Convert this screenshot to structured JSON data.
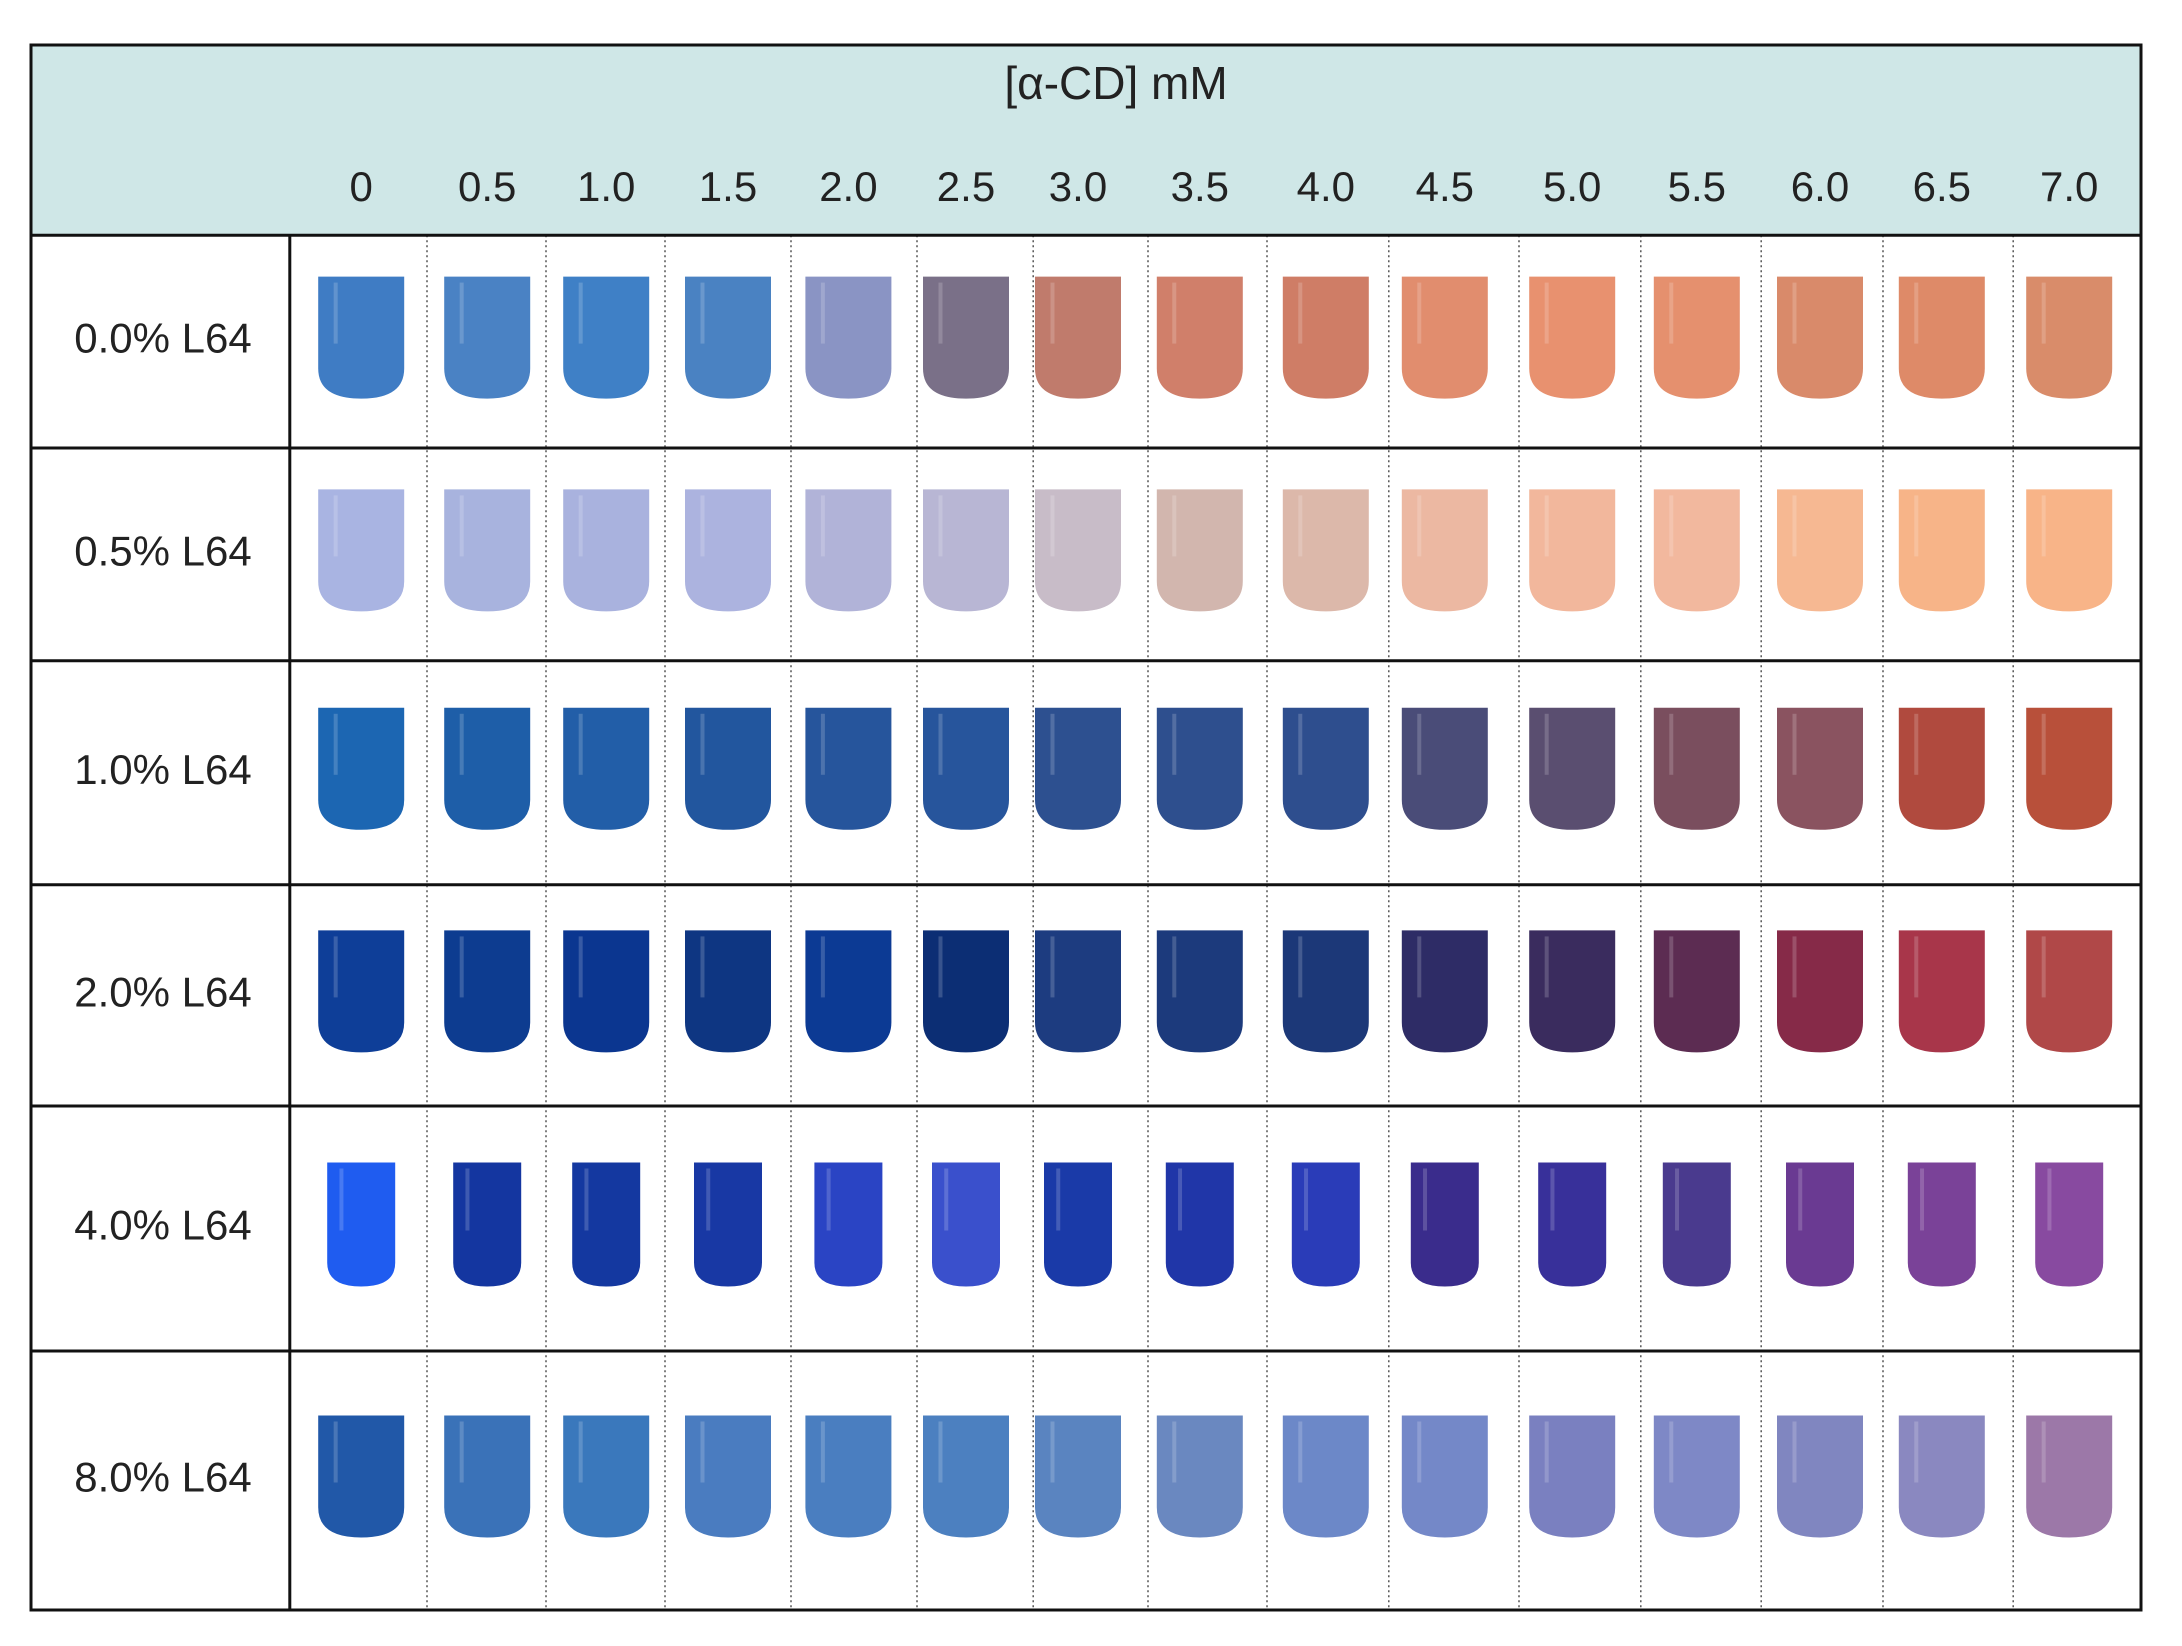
{
  "header": {
    "title": "[α-CD] mM",
    "columns": [
      "0",
      "0.5",
      "1.0",
      "1.5",
      "2.0",
      "2.5",
      "3.0",
      "3.5",
      "4.0",
      "4.5",
      "5.0",
      "5.5",
      "6.0",
      "6.5",
      "7.0"
    ]
  },
  "rows": [
    "0.0% L64",
    "0.5% L64",
    "1.0% L64",
    "2.0% L64",
    "4.0% L64",
    "8.0% L64"
  ]
}
